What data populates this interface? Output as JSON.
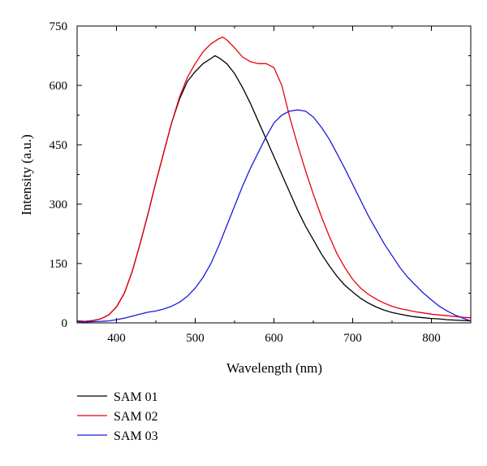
{
  "chart_data": {
    "type": "line",
    "xlabel": "Wavelength (nm)",
    "ylabel": "Intensity (a.u.)",
    "xlim": [
      350,
      850
    ],
    "ylim": [
      0,
      750
    ],
    "xticks": [
      400,
      500,
      600,
      700,
      800
    ],
    "yticks": [
      0,
      150,
      300,
      450,
      600,
      750
    ],
    "legend_position": "bottom-left, below plot",
    "grid": false,
    "series": [
      {
        "name": "SAM 01",
        "color": "#000000",
        "x": [
          350,
          360,
          370,
          380,
          390,
          400,
          410,
          420,
          430,
          440,
          450,
          460,
          470,
          480,
          490,
          500,
          510,
          520,
          525,
          530,
          540,
          550,
          560,
          570,
          580,
          590,
          600,
          610,
          620,
          630,
          640,
          650,
          660,
          670,
          680,
          690,
          700,
          710,
          720,
          730,
          740,
          750,
          760,
          770,
          780,
          790,
          800,
          810,
          820,
          830,
          840,
          850
        ],
        "y": [
          5,
          4,
          6,
          10,
          20,
          40,
          75,
          130,
          200,
          275,
          355,
          430,
          505,
          565,
          610,
          635,
          655,
          668,
          675,
          670,
          655,
          630,
          595,
          555,
          510,
          465,
          420,
          375,
          330,
          285,
          245,
          210,
          175,
          145,
          118,
          95,
          78,
          62,
          50,
          40,
          32,
          26,
          22,
          18,
          15,
          13,
          11,
          10,
          8,
          7,
          6,
          5
        ]
      },
      {
        "name": "SAM 02",
        "color": "#e8000b",
        "x": [
          350,
          360,
          370,
          380,
          390,
          400,
          410,
          420,
          430,
          440,
          450,
          460,
          470,
          480,
          490,
          500,
          510,
          520,
          530,
          535,
          540,
          550,
          560,
          570,
          580,
          590,
          600,
          610,
          620,
          630,
          640,
          650,
          660,
          670,
          680,
          690,
          700,
          710,
          720,
          730,
          740,
          750,
          760,
          770,
          780,
          790,
          800,
          810,
          820,
          830,
          840,
          850
        ],
        "y": [
          5,
          4,
          6,
          10,
          20,
          40,
          75,
          130,
          200,
          275,
          355,
          430,
          505,
          570,
          620,
          655,
          685,
          705,
          718,
          722,
          715,
          695,
          672,
          660,
          655,
          655,
          645,
          600,
          520,
          450,
          385,
          325,
          270,
          220,
          175,
          140,
          110,
          88,
          72,
          60,
          50,
          42,
          36,
          32,
          28,
          25,
          22,
          20,
          18,
          16,
          14,
          13
        ]
      },
      {
        "name": "SAM 03",
        "color": "#1a1adc",
        "x": [
          350,
          360,
          370,
          380,
          390,
          400,
          410,
          420,
          430,
          440,
          450,
          460,
          470,
          480,
          490,
          500,
          510,
          520,
          530,
          540,
          550,
          560,
          570,
          580,
          590,
          600,
          610,
          620,
          630,
          640,
          650,
          660,
          670,
          680,
          690,
          700,
          710,
          720,
          730,
          740,
          750,
          760,
          770,
          780,
          790,
          800,
          810,
          820,
          830,
          840,
          850
        ],
        "y": [
          3,
          2,
          3,
          4,
          5,
          8,
          12,
          17,
          22,
          27,
          30,
          35,
          42,
          52,
          67,
          88,
          115,
          150,
          195,
          245,
          295,
          345,
          390,
          430,
          470,
          505,
          525,
          535,
          538,
          535,
          520,
          495,
          465,
          428,
          390,
          350,
          310,
          270,
          235,
          200,
          170,
          140,
          115,
          95,
          75,
          58,
          42,
          30,
          20,
          12,
          5
        ]
      }
    ]
  }
}
